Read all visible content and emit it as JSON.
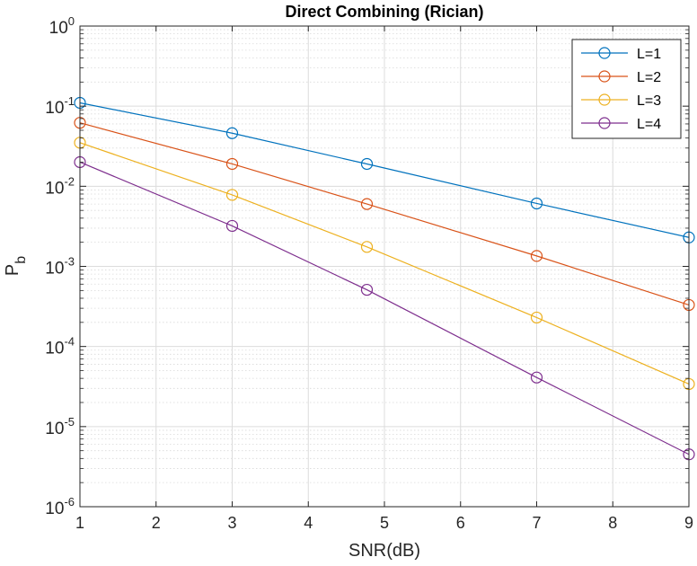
{
  "chart_data": {
    "type": "line",
    "title": "Direct Combining (Rician)",
    "xlabel": "SNR(dB)",
    "ylabel": {
      "main": "P",
      "sub": "b"
    },
    "xscale": "linear",
    "yscale": "log",
    "xlim": [
      1,
      9
    ],
    "ylim": [
      1e-06,
      1
    ],
    "grid": true,
    "minor_grid": true,
    "legend_position": "top-right",
    "x_ticks": [
      1,
      2,
      3,
      4,
      5,
      6,
      7,
      8,
      9
    ],
    "x_tick_labels": [
      "1",
      "2",
      "3",
      "4",
      "5",
      "6",
      "7",
      "8",
      "9"
    ],
    "y_ticks": [
      {
        "value": 1,
        "base": "10",
        "exp": "0"
      },
      {
        "value": 0.1,
        "base": "10",
        "exp": "-1"
      },
      {
        "value": 0.01,
        "base": "10",
        "exp": "-2"
      },
      {
        "value": 0.001,
        "base": "10",
        "exp": "-3"
      },
      {
        "value": 0.0001,
        "base": "10",
        "exp": "-4"
      },
      {
        "value": 1e-05,
        "base": "10",
        "exp": "-5"
      },
      {
        "value": 1e-06,
        "base": "10",
        "exp": "-6"
      }
    ],
    "x": [
      1,
      3,
      4.77,
      7,
      9
    ],
    "series": [
      {
        "name": "L=1",
        "color": "#0072BD",
        "marker": "circle",
        "values": [
          0.11,
          0.046,
          0.019,
          0.0061,
          0.0023
        ]
      },
      {
        "name": "L=2",
        "color": "#D95319",
        "marker": "circle",
        "values": [
          0.062,
          0.019,
          0.006,
          0.00135,
          0.00033
        ]
      },
      {
        "name": "L=3",
        "color": "#EDB120",
        "marker": "circle",
        "values": [
          0.035,
          0.0078,
          0.00175,
          0.00023,
          3.4e-05
        ]
      },
      {
        "name": "L=4",
        "color": "#7E2F8E",
        "marker": "circle",
        "values": [
          0.02,
          0.0032,
          0.00051,
          4.1e-05,
          4.5e-06
        ]
      }
    ]
  }
}
